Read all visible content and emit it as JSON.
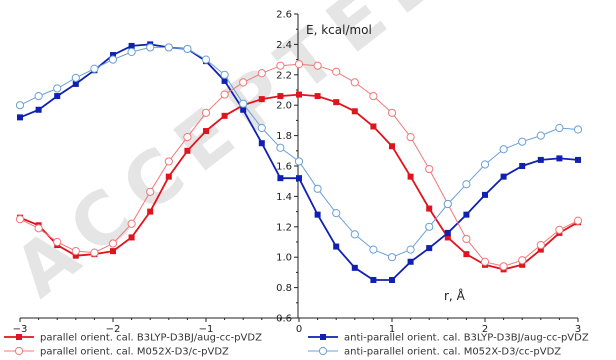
{
  "watermark": "ACCEPTED",
  "chart_data": {
    "type": "line",
    "title": "",
    "xlabel": "r, Å",
    "ylabel": "E, kcal/mol",
    "xlim": [
      -3,
      3
    ],
    "ylim": [
      0.6,
      2.6
    ],
    "x_ticks": [
      "-3",
      "-2",
      "-1",
      "0",
      "1",
      "2",
      "3"
    ],
    "y_ticks": [
      "0.6",
      "0.8",
      "1.0",
      "1.2",
      "1.4",
      "1.6",
      "1.8",
      "2.0",
      "2.2",
      "2.4",
      "2.6"
    ],
    "grid": false,
    "legend_position": "bottom",
    "series": [
      {
        "name": "parallel orient. cal. B3LYP-D3BJ/aug-cc-pVDZ",
        "color": "#e0141e",
        "marker": "filled-square",
        "x": [
          -3.0,
          -2.8,
          -2.6,
          -2.4,
          -2.2,
          -2.0,
          -1.8,
          -1.6,
          -1.4,
          -1.2,
          -1.0,
          -0.8,
          -0.6,
          -0.4,
          -0.2,
          0.0,
          0.2,
          0.4,
          0.6,
          0.8,
          1.0,
          1.2,
          1.4,
          1.6,
          1.8,
          2.0,
          2.2,
          2.4,
          2.6,
          2.8,
          3.0
        ],
        "y": [
          1.26,
          1.21,
          1.08,
          1.01,
          1.02,
          1.04,
          1.13,
          1.3,
          1.53,
          1.7,
          1.83,
          1.93,
          2.0,
          2.04,
          2.06,
          2.07,
          2.06,
          2.02,
          1.96,
          1.86,
          1.73,
          1.53,
          1.32,
          1.13,
          1.02,
          0.95,
          0.92,
          0.95,
          1.05,
          1.16,
          1.23
        ]
      },
      {
        "name": "anti-parallel orient. cal. B3LYP-D3BJ/aug-cc-pVDZ",
        "color": "#1020b0",
        "marker": "filled-square",
        "x": [
          -3.0,
          -2.8,
          -2.6,
          -2.4,
          -2.2,
          -2.0,
          -1.8,
          -1.6,
          -1.4,
          -1.2,
          -1.0,
          -0.8,
          -0.6,
          -0.4,
          -0.2,
          0.0,
          0.2,
          0.4,
          0.6,
          0.8,
          1.0,
          1.2,
          1.4,
          1.6,
          1.8,
          2.0,
          2.2,
          2.4,
          2.6,
          2.8,
          3.0
        ],
        "y": [
          1.92,
          1.97,
          2.06,
          2.14,
          2.23,
          2.33,
          2.39,
          2.4,
          2.38,
          2.37,
          2.29,
          2.16,
          1.97,
          1.75,
          1.52,
          1.52,
          1.28,
          1.07,
          0.93,
          0.85,
          0.85,
          0.97,
          1.06,
          1.16,
          1.28,
          1.41,
          1.53,
          1.6,
          1.64,
          1.65,
          1.64
        ]
      },
      {
        "name": "parallel orient. cal. M052X-D3/c-pVDZ",
        "color": "#f07878",
        "marker": "open-circle",
        "x": [
          -3.0,
          -2.8,
          -2.6,
          -2.4,
          -2.2,
          -2.0,
          -1.8,
          -1.6,
          -1.4,
          -1.2,
          -1.0,
          -0.8,
          -0.6,
          -0.4,
          -0.2,
          0.0,
          0.2,
          0.4,
          0.6,
          0.8,
          1.0,
          1.2,
          1.4,
          1.6,
          1.8,
          2.0,
          2.2,
          2.4,
          2.6,
          2.8,
          3.0
        ],
        "y": [
          1.25,
          1.19,
          1.1,
          1.04,
          1.03,
          1.09,
          1.22,
          1.43,
          1.63,
          1.79,
          1.95,
          2.07,
          2.15,
          2.21,
          2.26,
          2.27,
          2.26,
          2.22,
          2.15,
          2.06,
          1.95,
          1.79,
          1.58,
          1.35,
          1.12,
          0.97,
          0.94,
          0.98,
          1.08,
          1.18,
          1.24
        ]
      },
      {
        "name": "anti-parallel orient. cal. M052X-D3/cc-pVDZ",
        "color": "#6aa0d8",
        "marker": "open-circle",
        "x": [
          -3.0,
          -2.8,
          -2.6,
          -2.4,
          -2.2,
          -2.0,
          -1.8,
          -1.6,
          -1.4,
          -1.2,
          -1.0,
          -0.8,
          -0.6,
          -0.4,
          -0.2,
          0.0,
          0.2,
          0.4,
          0.6,
          0.8,
          1.0,
          1.2,
          1.4,
          1.6,
          1.8,
          2.0,
          2.2,
          2.4,
          2.6,
          2.8,
          3.0
        ],
        "y": [
          2.0,
          2.06,
          2.11,
          2.18,
          2.24,
          2.3,
          2.35,
          2.38,
          2.38,
          2.37,
          2.3,
          2.2,
          2.01,
          1.85,
          1.72,
          1.63,
          1.45,
          1.29,
          1.15,
          1.05,
          1.0,
          1.05,
          1.2,
          1.35,
          1.48,
          1.61,
          1.71,
          1.76,
          1.8,
          1.85,
          1.84
        ]
      }
    ]
  }
}
